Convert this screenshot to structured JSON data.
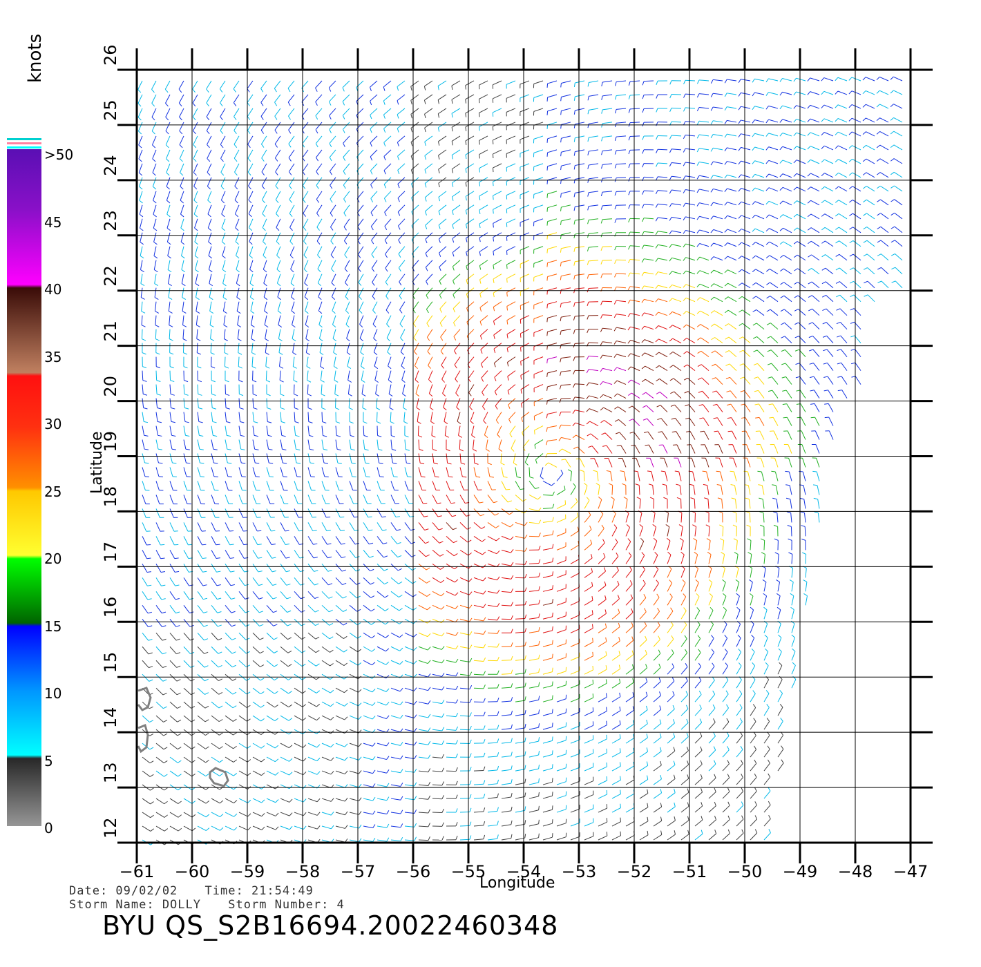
{
  "map": {
    "x_axis_label": "Longitude",
    "y_axis_label": "Latitude",
    "lon_range": [
      -61,
      -47
    ],
    "lat_range": [
      12,
      26
    ],
    "lon_ticks": [
      "−61",
      "−60",
      "−59",
      "−58",
      "−57",
      "−56",
      "−55",
      "−54",
      "−53",
      "−52",
      "−51",
      "−50",
      "−49",
      "−48",
      "−47"
    ],
    "lat_ticks": [
      "12",
      "13",
      "14",
      "15",
      "16",
      "17",
      "18",
      "19",
      "20",
      "21",
      "22",
      "23",
      "24",
      "25",
      "26"
    ],
    "grid": true,
    "storm_center": {
      "lon": -53.5,
      "lat": 18.7
    }
  },
  "colorbar": {
    "units": "knots",
    "labels": [
      ">50",
      "45",
      "40",
      "35",
      "30",
      "25",
      "20",
      "15",
      "10",
      "5",
      "0"
    ],
    "colors": [
      "#5a0fb4",
      "#a000c8",
      "#ff00ff",
      "#5a1e14",
      "#a05030",
      "#ff1e1e",
      "#ff5000",
      "#ffd000",
      "#ffff30",
      "#00ff00",
      "#006400",
      "#0000ff",
      "#0096ff",
      "#00ffff",
      "#282828",
      "#969696"
    ]
  },
  "info": {
    "date": "Date: 09/02/02",
    "time": "Time: 21:54:49",
    "storm_name": "Storm Name: DOLLY",
    "storm_number": "Storm Number: 4",
    "file_id": "BYU QS_S2B16694.20022460348"
  }
}
